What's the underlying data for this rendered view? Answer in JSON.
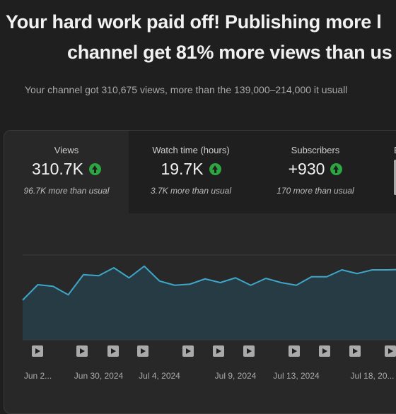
{
  "header": {
    "title_lines": [
      "Your hard work paid off! Publishing more l",
      "channel get 81% more views than us"
    ],
    "subtitle": "Your channel got 310,675 views, more than the 139,000–214,000 it usuall"
  },
  "metrics": [
    {
      "label": "Views",
      "value": "310.7K",
      "note": "96.7K more than usual"
    },
    {
      "label": "Watch time (hours)",
      "value": "19.7K",
      "note": "3.7K more than usual"
    },
    {
      "label": "Subscribers",
      "value": "+930",
      "note": "170 more than usual"
    },
    {
      "label": "B"
    }
  ],
  "chart_data": {
    "type": "area",
    "categories": [
      null,
      "Jun 2...",
      null,
      null,
      null,
      "Jun 30, 2024",
      null,
      null,
      null,
      "Jul 4, 2024",
      null,
      null,
      null,
      null,
      "Jul 9, 2024",
      null,
      null,
      null,
      "Jul 13, 2024",
      null,
      null,
      null,
      null,
      "Jul 18, 20...",
      null,
      null
    ],
    "values": [
      7500,
      10400,
      10100,
      8500,
      12300,
      12100,
      13600,
      11700,
      13900,
      11100,
      10300,
      10500,
      11500,
      10800,
      11700,
      10300,
      11600,
      10800,
      10300,
      11900,
      11900,
      13200,
      12500,
      13200,
      13200,
      13300
    ],
    "color": "#3ea6c8",
    "ylim": [
      0,
      16000
    ]
  }
}
